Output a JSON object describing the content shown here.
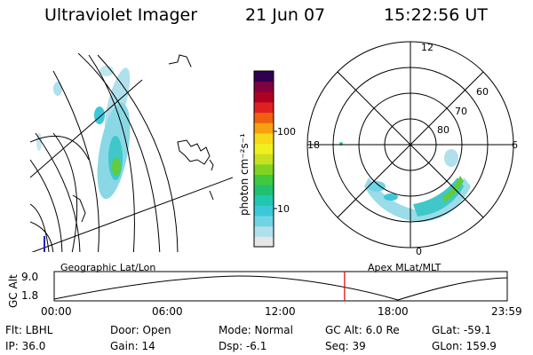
{
  "header": {
    "instrument": "Ultraviolet Imager",
    "date": "21 Jun 07",
    "time": "15:22:56 UT"
  },
  "colorbar": {
    "label": "photon cm⁻²s⁻¹",
    "ticks": [
      "100",
      "10"
    ],
    "scale": "log",
    "colors": [
      "#e6e6e6",
      "#b0e0ec",
      "#70d4e4",
      "#3cc8d8",
      "#20c8b0",
      "#20c070",
      "#40c840",
      "#80d420",
      "#c8e020",
      "#f0f020",
      "#f8d818",
      "#f8a010",
      "#f06010",
      "#e02020",
      "#b00020",
      "#800040",
      "#300050"
    ]
  },
  "polar_plot": {
    "mlt_labels": [
      "12",
      "6",
      "0",
      "18"
    ],
    "lat_labels": [
      "60",
      "70",
      "80"
    ]
  },
  "altitude_strip": {
    "left_label": "Geographic Lat/Lon",
    "right_label": "Apex MLat/MLT",
    "axis_title": "GC Alt",
    "y_ticks": [
      "9.0",
      "1.8"
    ],
    "x_ticks": [
      "00:00",
      "06:00",
      "12:00",
      "18:00",
      "23:59"
    ],
    "current_marker_color": "#e00000",
    "current_time_fraction": 0.6409
  },
  "status": {
    "flt": "Flt: LBHL",
    "ip": "IP: 36.0",
    "door": "Door: Open",
    "gain": "Gain: 14",
    "mode": "Mode: Normal",
    "dsp": "Dsp:   -6.1",
    "gc_alt": "GC Alt: 6.0 Re",
    "seq": "Seq: 39",
    "glat": "GLat: -59.1",
    "glon": "GLon: 159.9"
  }
}
